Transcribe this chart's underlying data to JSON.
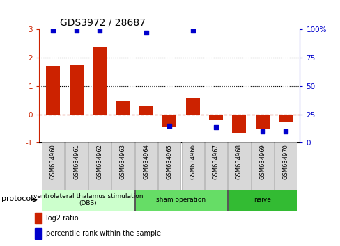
{
  "title": "GDS3972 / 28687",
  "samples": [
    "GSM634960",
    "GSM634961",
    "GSM634962",
    "GSM634963",
    "GSM634964",
    "GSM634965",
    "GSM634966",
    "GSM634967",
    "GSM634968",
    "GSM634969",
    "GSM634970"
  ],
  "log2_ratio": [
    1.7,
    1.75,
    2.4,
    0.45,
    0.3,
    -0.45,
    0.57,
    -0.2,
    -0.65,
    -0.5,
    -0.25
  ],
  "percentile_rank": [
    99,
    99,
    99,
    null,
    97,
    15,
    99,
    14,
    null,
    10,
    10
  ],
  "protocol_groups": [
    {
      "label": "ventrolateral thalamus stimulation\n(DBS)",
      "start": 0,
      "end": 3,
      "color": "#ccffcc"
    },
    {
      "label": "sham operation",
      "start": 4,
      "end": 7,
      "color": "#66dd66"
    },
    {
      "label": "naive",
      "start": 8,
      "end": 10,
      "color": "#33bb33"
    }
  ],
  "ylim_left": [
    -1,
    3
  ],
  "ylim_right": [
    0,
    100
  ],
  "bar_color": "#cc2200",
  "dot_color": "#0000cc",
  "zero_line_color": "#cc2200",
  "dotted_line_color": "#000000",
  "background_color": "#ffffff",
  "legend_bar_label": "log2 ratio",
  "legend_dot_label": "percentile rank within the sample",
  "label_box_color": "#d8d8d8",
  "protocol_label": "protocol"
}
